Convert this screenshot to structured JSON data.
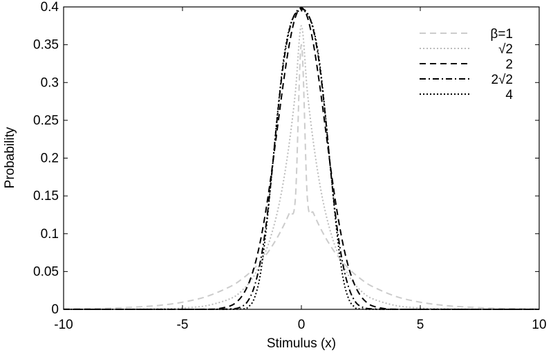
{
  "chart_data": {
    "type": "line",
    "title": "",
    "xlabel": "Stimulus (x)",
    "ylabel": "Probability",
    "xlim": [
      -10,
      10
    ],
    "ylim": [
      0,
      0.4
    ],
    "xticks": [
      -10,
      -5,
      0,
      5,
      10
    ],
    "xtick_labels": [
      "-10",
      "-5",
      "0",
      "5",
      "10"
    ],
    "yticks": [
      0,
      0.05,
      0.1,
      0.15,
      0.2,
      0.25,
      0.3,
      0.35,
      0.4
    ],
    "ytick_labels": [
      "0",
      "0.05",
      "0.1",
      "0.15",
      "0.2",
      "0.25",
      "0.3",
      "0.35",
      "0.4"
    ],
    "grid": false,
    "legend_position": "top-right",
    "series": [
      {
        "name": "β=1",
        "color": "#cccccc",
        "dash": "dashed",
        "x": [
          -10,
          -9,
          -8,
          -7,
          -6,
          -5,
          -4,
          -3,
          -2.5,
          -2,
          -1.5,
          -1.25,
          -1,
          -0.75,
          -0.5,
          -0.25,
          0,
          0.25,
          0.5,
          0.75,
          1,
          1.25,
          1.5,
          2,
          2.5,
          3,
          4,
          5,
          6,
          7,
          8,
          9,
          10
        ],
        "y": [
          0.0005,
          0.0009,
          0.0016,
          0.0029,
          0.0052,
          0.0094,
          0.0168,
          0.03,
          0.0401,
          0.0536,
          0.0716,
          0.0828,
          0.0957,
          0.1106,
          0.1278,
          0.1477,
          0.35,
          0.1477,
          0.1278,
          0.1106,
          0.0957,
          0.0828,
          0.0716,
          0.0536,
          0.0401,
          0.03,
          0.0168,
          0.0094,
          0.0052,
          0.0029,
          0.0016,
          0.0009,
          0.0005
        ]
      },
      {
        "name": "√2",
        "color": "#bbbbbb",
        "dash": "dotted",
        "x": [
          -10,
          -8,
          -6,
          -5,
          -4,
          -3,
          -2.5,
          -2,
          -1.5,
          -1.25,
          -1,
          -0.75,
          -0.5,
          -0.25,
          0,
          0.25,
          0.5,
          0.75,
          1,
          1.25,
          1.5,
          2,
          2.5,
          3,
          4,
          5,
          6,
          8,
          10
        ],
        "y": [
          0.0,
          0.0,
          0.0006,
          0.0017,
          0.0048,
          0.0139,
          0.0247,
          0.0439,
          0.077,
          0.1,
          0.13,
          0.17,
          0.222,
          0.288,
          0.375,
          0.288,
          0.222,
          0.17,
          0.13,
          0.1,
          0.077,
          0.0439,
          0.0247,
          0.0139,
          0.0048,
          0.0017,
          0.0006,
          0.0,
          0.0
        ]
      },
      {
        "name": "2",
        "color": "#000000",
        "dash": "dashed",
        "x": [
          -10,
          -6,
          -4,
          -3.5,
          -3,
          -2.75,
          -2.5,
          -2.25,
          -2,
          -1.75,
          -1.5,
          -1.25,
          -1,
          -0.75,
          -0.5,
          -0.25,
          0,
          0.25,
          0.5,
          0.75,
          1,
          1.25,
          1.5,
          1.75,
          2,
          2.25,
          2.5,
          2.75,
          3,
          3.5,
          4,
          6,
          10
        ],
        "y": [
          0.0,
          0.0,
          0.0001,
          0.0009,
          0.0044,
          0.009,
          0.0175,
          0.0317,
          0.054,
          0.0863,
          0.1295,
          0.1826,
          0.242,
          0.3011,
          0.3521,
          0.3867,
          0.3989,
          0.3867,
          0.3521,
          0.3011,
          0.242,
          0.1826,
          0.1295,
          0.0863,
          0.054,
          0.0317,
          0.0175,
          0.009,
          0.0044,
          0.0009,
          0.0001,
          0.0,
          0.0
        ]
      },
      {
        "name": "2√2",
        "color": "#000000",
        "dash": "dashdot",
        "x": [
          -10,
          -5,
          -3,
          -2.5,
          -2.25,
          -2,
          -1.75,
          -1.5,
          -1.25,
          -1,
          -0.75,
          -0.5,
          -0.25,
          0,
          0.25,
          0.5,
          0.75,
          1,
          1.25,
          1.5,
          1.75,
          2,
          2.25,
          2.5,
          3,
          5,
          10
        ],
        "y": [
          0.0,
          0.0,
          0.0005,
          0.004,
          0.011,
          0.028,
          0.059,
          0.108,
          0.178,
          0.258,
          0.326,
          0.37,
          0.392,
          0.397,
          0.392,
          0.37,
          0.326,
          0.258,
          0.178,
          0.108,
          0.059,
          0.028,
          0.011,
          0.004,
          0.0005,
          0.0,
          0.0
        ]
      },
      {
        "name": "4",
        "color": "#000000",
        "dash": "dotted",
        "x": [
          -10,
          -4,
          -2.5,
          -2.25,
          -2,
          -1.75,
          -1.5,
          -1.25,
          -1,
          -0.75,
          -0.5,
          -0.25,
          0,
          0.25,
          0.5,
          0.75,
          1,
          1.25,
          1.5,
          1.75,
          2,
          2.25,
          2.5,
          4,
          10
        ],
        "y": [
          0.0,
          0.0,
          0.0005,
          0.003,
          0.013,
          0.042,
          0.1,
          0.178,
          0.26,
          0.33,
          0.372,
          0.391,
          0.395,
          0.391,
          0.372,
          0.33,
          0.26,
          0.178,
          0.1,
          0.042,
          0.013,
          0.003,
          0.0005,
          0.0,
          0.0
        ]
      }
    ]
  }
}
